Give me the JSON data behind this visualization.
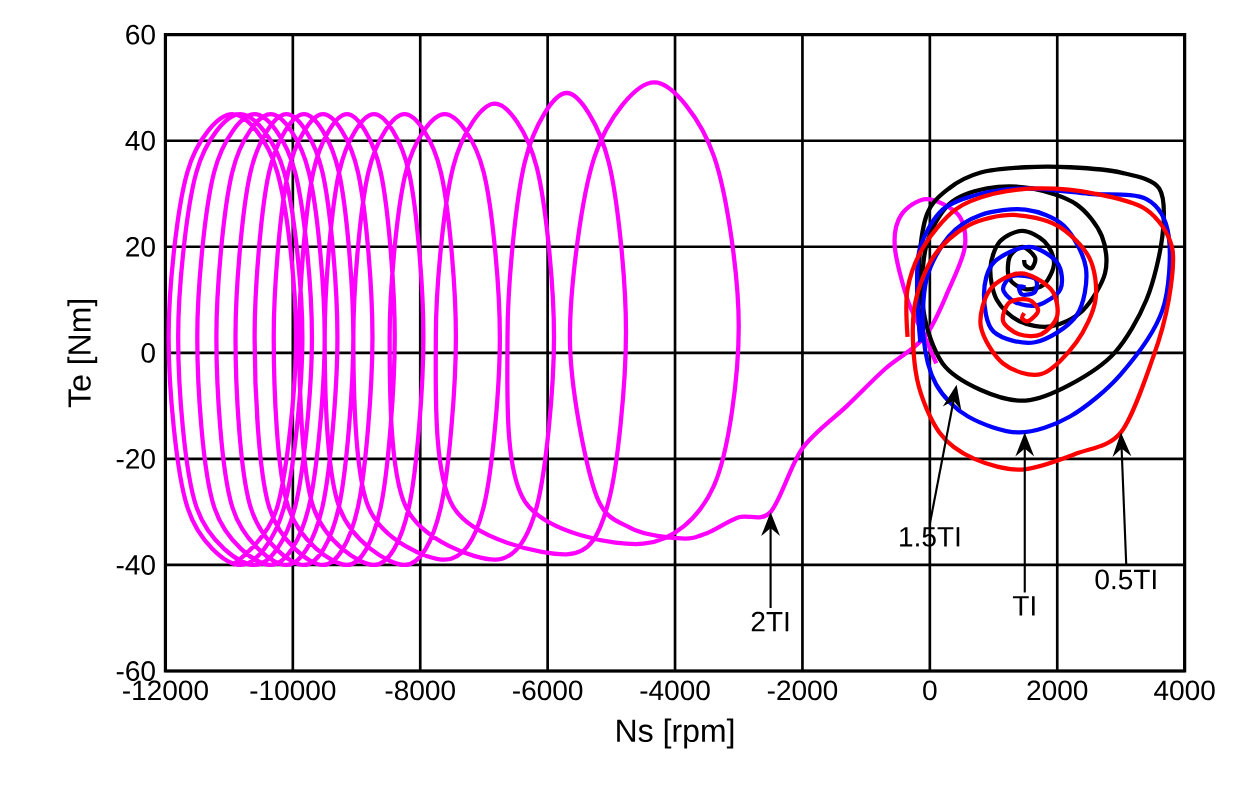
{
  "chart_data": {
    "type": "line",
    "xlabel": "Ns [rpm]",
    "ylabel": "Te [Nm]",
    "xlim": [
      -12000,
      4000
    ],
    "xticks": [
      -12000,
      -10000,
      -8000,
      -6000,
      -4000,
      -2000,
      0,
      2000,
      4000
    ],
    "ylim": [
      -60,
      60
    ],
    "yticks": [
      -60,
      -40,
      -20,
      0,
      20,
      40,
      60
    ],
    "grid": true,
    "line_style": "solid",
    "series": [
      {
        "color": "#ff00ff",
        "x": [
          100,
          -80,
          -350,
          -550,
          -450,
          -50,
          450,
          550,
          300,
          -80,
          -700,
          -1300,
          -2000,
          -2500,
          -3000,
          -3500,
          -3900,
          -4700,
          -5263,
          -5650,
          -5263,
          -4325,
          -3387,
          -3000,
          -3387,
          -4500,
          -6358,
          -6630,
          -6358,
          -5700,
          -5042,
          -4770,
          -5042,
          -5700,
          -7484,
          -7755,
          -7484,
          -6828,
          -6171,
          -5900,
          -6171,
          -6828,
          -8227,
          -8480,
          -8227,
          -7615,
          -7003,
          -6750,
          -7003,
          -7615,
          -8815,
          -9050,
          -8815,
          -8245,
          -7675,
          -7440,
          -7675,
          -8245,
          -9274,
          -9500,
          -9274,
          -8725,
          -8176,
          -7950,
          -8176,
          -8725,
          -9681,
          -9900,
          -9681,
          -9150,
          -8619,
          -8400,
          -8619,
          -9150,
          -10074,
          -10300,
          -10074,
          -9525,
          -8976,
          -8750,
          -8976,
          -9525,
          -10374,
          -10600,
          -10374,
          -9825,
          -9276,
          -9050,
          -9276,
          -9825,
          -10666,
          -10900,
          -10666,
          -10100,
          -9534,
          -9300,
          -9534,
          -10100,
          -10952,
          -11200,
          -10952,
          -10350,
          -9748,
          -9500,
          -9748,
          -10350,
          -11237,
          -11500,
          -11237,
          -10600,
          -9963,
          -9700,
          -9963,
          -10600,
          -11515,
          -11800,
          -11515,
          -10825,
          -10135,
          -9850,
          -10135,
          -10825,
          -11658,
          -11950,
          -11658,
          -10950,
          -10242,
          -9950,
          -10242,
          -10950
        ],
        "values": [
          -2,
          3,
          10,
          20,
          26,
          29,
          26,
          20,
          12,
          3,
          -3,
          -10,
          -18,
          -30,
          -31,
          -34,
          -35,
          -33,
          -26,
          3,
          37,
          51,
          37,
          5,
          -25,
          -36,
          -28,
          3,
          36,
          49,
          36,
          4,
          -28,
          -38,
          -29,
          3,
          35,
          47,
          35,
          3,
          -29,
          -39,
          -29,
          3,
          34,
          45,
          34,
          3,
          -29,
          -39,
          -29,
          3,
          34,
          45,
          34,
          3,
          -29,
          -40,
          -29,
          3,
          34,
          45,
          34,
          3,
          -29,
          -40,
          -29,
          3,
          34,
          45,
          34,
          3,
          -29,
          -40,
          -29,
          3,
          34,
          45,
          34,
          3,
          -29,
          -40,
          -29,
          3,
          34,
          45,
          34,
          3,
          -29,
          -40,
          -29,
          3,
          34,
          45,
          34,
          3,
          -29,
          -40,
          -29,
          3,
          34,
          45,
          34,
          3,
          -29,
          -40,
          -29,
          3,
          34,
          45,
          34,
          3,
          -29,
          -40,
          -29,
          3,
          34,
          45,
          34,
          3,
          -29,
          -40,
          -29,
          3,
          34,
          45,
          34,
          3,
          -29,
          -40
        ]
      },
      {
        "color": "#000000",
        "x": [
          -150,
          -180,
          -50,
          300,
          800,
          1500,
          2200,
          3000,
          3600,
          3650,
          3400,
          2900,
          2200,
          1500,
          800,
          200,
          -100,
          -60,
          300,
          900,
          1600,
          2300,
          2700,
          2750,
          2400,
          1900,
          1400,
          1050,
          950,
          1100,
          1450,
          1800,
          1950,
          1800,
          1500,
          1250,
          1250,
          1450,
          1650,
          1600,
          1500,
          1480
        ],
        "values": [
          3,
          15,
          26,
          31,
          34,
          35,
          35,
          34,
          31,
          22,
          10,
          0,
          -6,
          -9,
          -7,
          -2,
          8,
          20,
          28,
          31,
          31,
          28,
          22,
          15,
          8,
          5,
          6,
          10,
          16,
          21,
          23,
          21,
          17,
          13,
          12,
          14,
          18,
          20,
          18,
          16,
          16.5,
          17.5
        ]
      },
      {
        "color": "#0000ff",
        "x": [
          -150,
          -200,
          -150,
          200,
          800,
          1500,
          2500,
          3400,
          3750,
          3650,
          3000,
          2200,
          1400,
          600,
          100,
          -100,
          -50,
          300,
          800,
          1500,
          2100,
          2450,
          2300,
          1650,
          1000,
          850,
          1000,
          1550,
          2000,
          2050,
          1700,
          1350,
          1150,
          1300,
          1650,
          1650,
          1450,
          1400,
          1500
        ],
        "values": [
          2,
          12,
          20,
          27,
          30,
          31,
          30,
          29,
          22,
          8,
          -4,
          -12,
          -15,
          -12,
          -6,
          3,
          14,
          22,
          26,
          27,
          24,
          16,
          7,
          2,
          4,
          11,
          17,
          20,
          17,
          12,
          9,
          9.5,
          12,
          14.5,
          14,
          11.5,
          11,
          12.5,
          12.3
        ]
      },
      {
        "color": "#ff0000",
        "x": [
          -350,
          -350,
          -100,
          400,
          1000,
          1750,
          2600,
          3400,
          3800,
          3750,
          3500,
          3000,
          2300,
          1450,
          700,
          150,
          -200,
          -250,
          50,
          600,
          1300,
          2000,
          2500,
          2600,
          2300,
          1750,
          1150,
          800,
          950,
          1430,
          1900,
          2000,
          1750,
          1400,
          1150,
          1250,
          1550,
          1700,
          1550,
          1450,
          1480
        ],
        "values": [
          3,
          12,
          20,
          27,
          30,
          31,
          30,
          27,
          20,
          10,
          -1,
          -15,
          -19,
          -22,
          -20,
          -15,
          -5,
          8,
          18,
          24,
          26,
          24,
          18,
          10,
          2,
          -4,
          -2,
          5,
          12,
          15,
          12,
          7,
          3.5,
          3.5,
          6,
          9.5,
          10,
          8,
          6,
          6.5,
          7.5
        ]
      }
    ],
    "annotations": [
      {
        "text": "2TI",
        "x": -2500,
        "y": -30
      },
      {
        "text": "1.5TI",
        "x": 420,
        "y": -6
      },
      {
        "text": "TI",
        "x": 1490,
        "y": -15
      },
      {
        "text": "0.5TI",
        "x": 3000,
        "y": -15
      }
    ]
  }
}
